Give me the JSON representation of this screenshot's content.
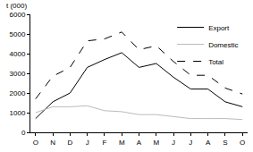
{
  "chart_data": {
    "type": "line",
    "y_label": "t (000)",
    "categories": [
      "O",
      "N",
      "D",
      "J",
      "F",
      "M",
      "A",
      "M",
      "J",
      "J",
      "A",
      "S",
      "O"
    ],
    "series": [
      {
        "name": "Export",
        "color": "#000000",
        "line_style": "solid",
        "values": [
          700,
          1550,
          2000,
          3300,
          3700,
          4050,
          3300,
          3500,
          2800,
          2200,
          2200,
          1550,
          1300
        ]
      },
      {
        "name": "Domestic",
        "color": "#bbbbbb",
        "line_style": "solid",
        "values": [
          1000,
          1300,
          1300,
          1350,
          1100,
          1050,
          900,
          900,
          800,
          700,
          700,
          700,
          650
        ]
      },
      {
        "name": "Total",
        "color": "#000000",
        "line_style": "dash",
        "values": [
          1700,
          2850,
          3300,
          4650,
          4750,
          5100,
          4200,
          4400,
          3600,
          2900,
          2900,
          2250,
          1950
        ]
      }
    ],
    "ylim": [
      0,
      6000
    ],
    "yticks": [
      0,
      1000,
      2000,
      3000,
      4000,
      5000,
      6000
    ],
    "grid": false,
    "legend": "top right"
  }
}
